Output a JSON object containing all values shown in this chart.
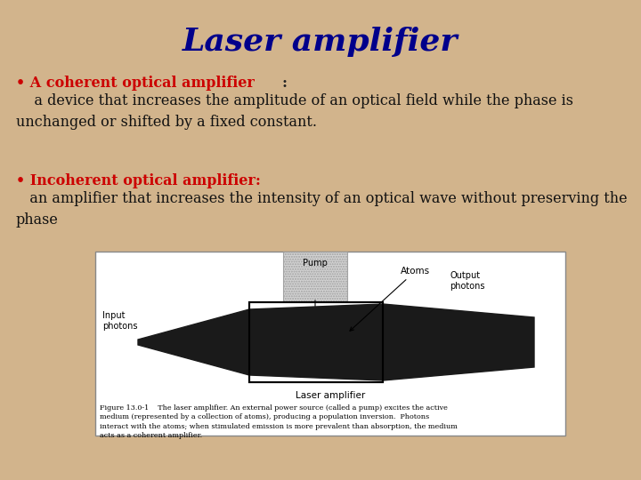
{
  "title": "Laser amplifier",
  "title_color": "#00008B",
  "title_fontsize": 26,
  "title_fontstyle": "italic",
  "title_fontweight": "bold",
  "bg_color": "#D2B48C",
  "bullet1_label": "• A coherent optical amplifier ",
  "bullet1_colon": ":",
  "bullet1_label_color": "#CC0000",
  "bullet1_colon_color": "#222222",
  "bullet1_body": "    a device that increases the amplitude of an optical field while the phase is\nunchanged or shifted by a fixed constant.",
  "bullet2_label": "• Incoherent optical amplifier:",
  "bullet2_label_color": "#CC0000",
  "bullet2_body": "   an amplifier that increases the intensity of an optical wave without preserving the\nphase",
  "body_color": "#111111",
  "text_fontsize": 11.5,
  "label_fontsize": 11.5,
  "fig_width": 7.2,
  "fig_height": 5.4,
  "dpi": 100
}
